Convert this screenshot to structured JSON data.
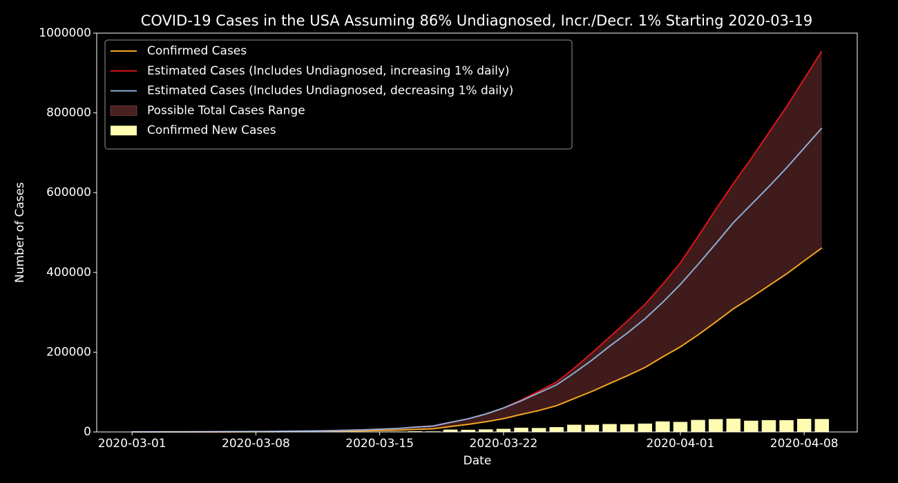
{
  "chart_data": {
    "type": "line",
    "title": "COVID-19 Cases in the USA Assuming 86% Undiagnosed, Incr./Decr. 1% Starting 2020-03-19",
    "x_label": "Date",
    "y_label": "Number of Cases",
    "x": [
      "2020-03-01",
      "2020-03-02",
      "2020-03-03",
      "2020-03-04",
      "2020-03-05",
      "2020-03-06",
      "2020-03-07",
      "2020-03-08",
      "2020-03-09",
      "2020-03-10",
      "2020-03-11",
      "2020-03-12",
      "2020-03-13",
      "2020-03-14",
      "2020-03-15",
      "2020-03-16",
      "2020-03-17",
      "2020-03-18",
      "2020-03-19",
      "2020-03-20",
      "2020-03-21",
      "2020-03-22",
      "2020-03-23",
      "2020-03-24",
      "2020-03-25",
      "2020-03-26",
      "2020-03-27",
      "2020-03-28",
      "2020-03-29",
      "2020-03-30",
      "2020-03-31",
      "2020-04-01",
      "2020-04-02",
      "2020-04-03",
      "2020-04-04",
      "2020-04-05",
      "2020-04-06",
      "2020-04-07",
      "2020-04-08",
      "2020-04-09"
    ],
    "series": [
      {
        "name": "Confirmed Cases",
        "color": "#f5a623",
        "values": [
          75,
          100,
          124,
          158,
          221,
          319,
          435,
          541,
          704,
          994,
          1301,
          1630,
          2183,
          2770,
          3613,
          4596,
          6344,
          7783,
          13677,
          19100,
          25489,
          33276,
          43847,
          53740,
          65778,
          83836,
          101657,
          121478,
          140886,
          161807,
          188172,
          213372,
          243453,
          275586,
          308850,
          337072,
          366667,
          396223,
          429052,
          461437
        ]
      },
      {
        "name": "Estimated Cases (Includes Undiagnosed, increasing 1% daily)",
        "color": "#e0141b",
        "values": [
          140,
          190,
          240,
          300,
          420,
          600,
          830,
          1030,
          1340,
          1890,
          2470,
          3100,
          4150,
          5260,
          6870,
          8730,
          12050,
          14800,
          24000,
          33000,
          45000,
          60000,
          80000,
          102000,
          125000,
          160000,
          198000,
          238000,
          278000,
          320000,
          370000,
          424000,
          490000,
          558000,
          623000,
          685000,
          750000,
          815000,
          885000,
          955000
        ]
      },
      {
        "name": "Estimated Cases (Includes Undiagnosed, decreasing 1% daily)",
        "color": "#8eaed6",
        "values": [
          140,
          190,
          240,
          300,
          420,
          600,
          830,
          1030,
          1340,
          1890,
          2470,
          3100,
          4150,
          5260,
          6870,
          8730,
          12050,
          14800,
          24000,
          33000,
          45000,
          60000,
          78000,
          98000,
          118000,
          148000,
          180000,
          215000,
          248000,
          284000,
          325000,
          370000,
          420000,
          472000,
          525000,
          570000,
          615000,
          662000,
          712000,
          762000
        ]
      },
      {
        "name": "Confirmed New Cases",
        "type": "bar",
        "color": "#fffbb0",
        "values": [
          7,
          25,
          24,
          34,
          63,
          98,
          116,
          106,
          163,
          290,
          307,
          329,
          553,
          587,
          843,
          983,
          1748,
          1439,
          5894,
          5423,
          6389,
          7787,
          10571,
          9893,
          12038,
          18058,
          17821,
          19821,
          19408,
          20921,
          26365,
          25200,
          30081,
          32133,
          33264,
          28222,
          29595,
          29556,
          32829,
          32385
        ]
      }
    ],
    "fill": {
      "name": "Possible Total Cases Range",
      "color": "#4a2020"
    },
    "xlim": [
      "2020-02-28",
      "2020-04-11"
    ],
    "xticks": [
      "2020-03-01",
      "2020-03-08",
      "2020-03-15",
      "2020-03-22",
      "2020-04-01",
      "2020-04-08"
    ],
    "ylim": [
      0,
      1000000
    ],
    "yticks": [
      0,
      200000,
      400000,
      600000,
      800000,
      1000000
    ],
    "legend": "upper left"
  }
}
